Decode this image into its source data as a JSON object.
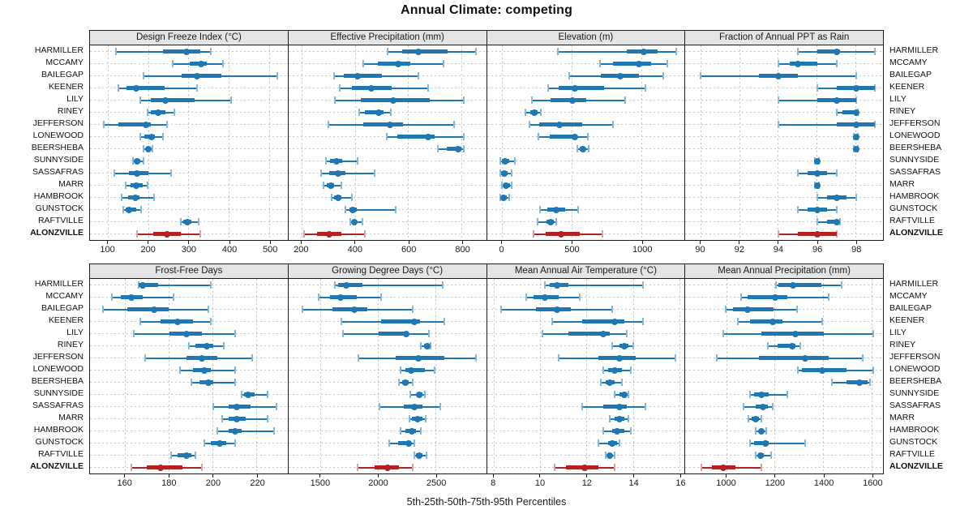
{
  "title": "Annual Climate: competing",
  "axis_caption": "5th-25th-50th-75th-95th Percentiles",
  "colors": {
    "series": "#1f77b4",
    "series_light": "#85b8dc",
    "highlight": "#b22222",
    "highlight_light": "#dda0a0",
    "grid": "#c4c4c4",
    "strip_bg": "#e4e4e4",
    "border": "#1a1a1a",
    "text": "#111111"
  },
  "chart_data": {
    "type": "dotplot-percentiles",
    "percentile_labels": [
      "5th",
      "25th",
      "50th",
      "75th",
      "95th"
    ],
    "legend_note": "5th-25th-50th-75th-95th Percentiles",
    "locations": [
      "HARMILLER",
      "MCCAMY",
      "BAILEGAP",
      "KEENER",
      "LILY",
      "RINEY",
      "JEFFERSON",
      "LONEWOOD",
      "BEERSHEBA",
      "SUNNYSIDE",
      "SASSAFRAS",
      "MARR",
      "HAMBROOK",
      "GUNSTOCK",
      "RAFTVILLE",
      "ALONZVILLE"
    ],
    "highlight_location": "ALONZVILLE",
    "panels": [
      {
        "row": 0,
        "title": "Design Freeze Index (°C)",
        "xlim": [
          55,
          545
        ],
        "ticks": [
          100,
          200,
          300,
          400,
          500
        ],
        "values": [
          [
            120,
            235,
            295,
            328,
            355
          ],
          [
            260,
            302,
            330,
            345,
            385
          ],
          [
            188,
            282,
            320,
            380,
            520
          ],
          [
            125,
            146,
            170,
            240,
            320
          ],
          [
            180,
            206,
            242,
            315,
            405
          ],
          [
            198,
            206,
            224,
            242,
            265
          ],
          [
            90,
            126,
            193,
            205,
            245
          ],
          [
            180,
            190,
            208,
            216,
            235
          ],
          [
            188,
            193,
            199,
            204,
            209
          ],
          [
            162,
            166,
            172,
            179,
            187
          ],
          [
            115,
            152,
            172,
            200,
            257
          ],
          [
            144,
            156,
            169,
            185,
            198
          ],
          [
            133,
            150,
            168,
            177,
            213
          ],
          [
            137,
            143,
            152,
            170,
            181
          ],
          [
            280,
            286,
            296,
            306,
            324
          ],
          [
            172,
            212,
            245,
            280,
            328
          ]
        ]
      },
      {
        "row": 0,
        "title": "Effective Precipitation (mm)",
        "xlim": [
          150,
          890
        ],
        "ticks": [
          200,
          400,
          600,
          800
        ],
        "values": [
          [
            520,
            575,
            637,
            745,
            852
          ],
          [
            430,
            485,
            560,
            605,
            730
          ],
          [
            320,
            357,
            410,
            500,
            637
          ],
          [
            342,
            387,
            459,
            535,
            672
          ],
          [
            324,
            422,
            542,
            680,
            807
          ],
          [
            414,
            437,
            489,
            507,
            532
          ],
          [
            300,
            430,
            530,
            580,
            770
          ],
          [
            517,
            557,
            672,
            697,
            807
          ],
          [
            710,
            742,
            785,
            797,
            807
          ],
          [
            290,
            307,
            330,
            352,
            410
          ],
          [
            272,
            302,
            337,
            362,
            472
          ],
          [
            282,
            292,
            310,
            320,
            347
          ],
          [
            312,
            320,
            335,
            347,
            387
          ],
          [
            362,
            377,
            392,
            407,
            552
          ],
          [
            380,
            390,
            397,
            407,
            427
          ],
          [
            207,
            257,
            302,
            347,
            435
          ]
        ]
      },
      {
        "row": 0,
        "title": "Elevation (m)",
        "xlim": [
          -110,
          1305
        ],
        "ticks": [
          0,
          500,
          1000
        ],
        "values": [
          [
            400,
            890,
            1012,
            1110,
            1245
          ],
          [
            698,
            794,
            981,
            1063,
            1183
          ],
          [
            477,
            708,
            846,
            977,
            1150
          ],
          [
            329,
            406,
            521,
            727,
            1025
          ],
          [
            213,
            346,
            500,
            602,
            877
          ],
          [
            165,
            200,
            231,
            252,
            275
          ],
          [
            194,
            265,
            410,
            573,
            794
          ],
          [
            256,
            342,
            519,
            540,
            612
          ],
          [
            540,
            557,
            577,
            597,
            617
          ],
          [
            -13,
            0,
            21,
            48,
            88
          ],
          [
            -17,
            -8,
            15,
            40,
            67
          ],
          [
            0,
            10,
            29,
            54,
            67
          ],
          [
            -17,
            -8,
            10,
            31,
            48
          ],
          [
            271,
            323,
            387,
            448,
            544
          ],
          [
            252,
            317,
            346,
            371,
            387
          ],
          [
            223,
            310,
            419,
            554,
            717
          ]
        ]
      },
      {
        "row": 0,
        "title": "Fraction of Annual PPT as Rain",
        "xlim": [
          89.2,
          99.4
        ],
        "ticks": [
          90,
          92,
          94,
          96,
          98
        ],
        "values": [
          [
            95,
            96,
            97,
            97.2,
            99
          ],
          [
            94,
            94.6,
            95,
            96,
            97
          ],
          [
            90,
            93,
            94,
            95,
            98
          ],
          [
            96,
            97,
            98,
            99,
            99
          ],
          [
            94,
            96,
            97,
            98,
            98
          ],
          [
            97,
            97.3,
            98,
            98,
            98.1
          ],
          [
            94,
            97,
            98,
            99,
            99
          ],
          [
            97.9,
            98,
            98,
            98,
            98.1
          ],
          [
            97.9,
            98,
            98,
            98,
            98.1
          ],
          [
            95.9,
            96,
            96,
            96,
            96.1
          ],
          [
            95,
            95.5,
            96,
            96.5,
            97
          ],
          [
            95.9,
            96,
            96,
            96,
            96.1
          ],
          [
            96,
            96.5,
            97,
            97.5,
            98
          ],
          [
            95,
            95.5,
            96,
            96.5,
            97
          ],
          [
            96,
            96.5,
            97,
            97,
            97.2
          ],
          [
            94,
            95,
            96,
            97,
            97
          ]
        ]
      },
      {
        "row": 1,
        "title": "Frost-Free Days",
        "xlim": [
          144,
          234
        ],
        "ticks": [
          160,
          180,
          200,
          220
        ],
        "values": [
          [
            166,
            166,
            168,
            175,
            199
          ],
          [
            154,
            158,
            163,
            168,
            182
          ],
          [
            150,
            161,
            173,
            180,
            198
          ],
          [
            167,
            176,
            184,
            191,
            199
          ],
          [
            164,
            180,
            188,
            195,
            210
          ],
          [
            189,
            192,
            197,
            200,
            205
          ],
          [
            169,
            188,
            195,
            202,
            218
          ],
          [
            185,
            191,
            196,
            199,
            210
          ],
          [
            190,
            194,
            198,
            200,
            210
          ],
          [
            213,
            214,
            216,
            219,
            225
          ],
          [
            200,
            207,
            211,
            217,
            229
          ],
          [
            204,
            207,
            211,
            215,
            225
          ],
          [
            202,
            207,
            210,
            213,
            228
          ],
          [
            196,
            199,
            203,
            206,
            210
          ],
          [
            181,
            184,
            188,
            190,
            192
          ],
          [
            163,
            170,
            176,
            186,
            195
          ]
        ]
      },
      {
        "row": 1,
        "title": "Growing Degree Days (°C)",
        "xlim": [
          1220,
          2935
        ],
        "ticks": [
          1500,
          2000,
          2500
        ],
        "values": [
          [
            1620,
            1650,
            1720,
            1860,
            2560
          ],
          [
            1485,
            1580,
            1675,
            1815,
            2025
          ],
          [
            1340,
            1605,
            1790,
            1905,
            2295
          ],
          [
            1680,
            2025,
            2310,
            2360,
            2570
          ],
          [
            1690,
            2000,
            2240,
            2265,
            2440
          ],
          [
            2370,
            2400,
            2426,
            2442,
            2455
          ],
          [
            1830,
            2150,
            2350,
            2570,
            2850
          ],
          [
            2190,
            2235,
            2285,
            2405,
            2490
          ],
          [
            2180,
            2210,
            2233,
            2262,
            2295
          ],
          [
            2280,
            2330,
            2356,
            2382,
            2402
          ],
          [
            2012,
            2220,
            2310,
            2385,
            2535
          ],
          [
            2270,
            2290,
            2340,
            2380,
            2410
          ],
          [
            2195,
            2235,
            2293,
            2328,
            2370
          ],
          [
            2095,
            2170,
            2260,
            2280,
            2310
          ],
          [
            2310,
            2325,
            2355,
            2385,
            2415
          ],
          [
            1820,
            1965,
            2077,
            2177,
            2300
          ]
        ]
      },
      {
        "row": 1,
        "title": "Mean Annual Air Temperature (°C)",
        "xlim": [
          7.7,
          16.2
        ],
        "ticks": [
          8,
          10,
          12,
          14,
          16
        ],
        "values": [
          [
            10.2,
            10.4,
            10.7,
            11.2,
            14.4
          ],
          [
            9.4,
            9.7,
            10.2,
            10.8,
            11.7
          ],
          [
            8.3,
            9.8,
            10.7,
            11.3,
            13.1
          ],
          [
            10.5,
            11.8,
            13.2,
            13.6,
            14.4
          ],
          [
            10.1,
            11.2,
            12.7,
            13.0,
            13.7
          ],
          [
            13.1,
            13.4,
            13.6,
            13.8,
            14.0
          ],
          [
            10.8,
            12.5,
            13.4,
            14.1,
            15.8
          ],
          [
            12.7,
            12.9,
            13.2,
            13.5,
            13.9
          ],
          [
            12.6,
            12.8,
            13.0,
            13.2,
            13.5
          ],
          [
            13.2,
            13.4,
            13.6,
            13.7,
            13.8
          ],
          [
            11.8,
            12.7,
            13.4,
            13.7,
            14.5
          ],
          [
            13.0,
            13.2,
            13.4,
            13.6,
            13.8
          ],
          [
            12.7,
            13.1,
            13.3,
            13.6,
            13.9
          ],
          [
            12.5,
            12.9,
            13.1,
            13.3,
            13.4
          ],
          [
            12.8,
            12.9,
            13.0,
            13.1,
            13.2
          ],
          [
            10.6,
            11.1,
            11.9,
            12.5,
            13.2
          ]
        ]
      },
      {
        "row": 1,
        "title": "Mean Annual Precipitation (mm)",
        "xlim": [
          830,
          1645
        ],
        "ticks": [
          1000,
          1200,
          1400,
          1600
        ],
        "values": [
          [
            1205,
            1215,
            1275,
            1390,
            1475
          ],
          [
            1060,
            1085,
            1200,
            1250,
            1420
          ],
          [
            995,
            1025,
            1085,
            1195,
            1290
          ],
          [
            1045,
            1095,
            1190,
            1230,
            1395
          ],
          [
            985,
            1145,
            1285,
            1400,
            1605
          ],
          [
            1170,
            1210,
            1270,
            1285,
            1305
          ],
          [
            960,
            1135,
            1325,
            1420,
            1560
          ],
          [
            1295,
            1310,
            1395,
            1495,
            1605
          ],
          [
            1435,
            1495,
            1548,
            1580,
            1592
          ],
          [
            1095,
            1115,
            1145,
            1175,
            1250
          ],
          [
            1070,
            1120,
            1150,
            1170,
            1190
          ],
          [
            1090,
            1105,
            1120,
            1135,
            1145
          ],
          [
            1120,
            1135,
            1145,
            1155,
            1165
          ],
          [
            1095,
            1115,
            1160,
            1175,
            1325
          ],
          [
            1120,
            1130,
            1140,
            1155,
            1185
          ],
          [
            895,
            940,
            985,
            1035,
            1145
          ]
        ]
      }
    ]
  }
}
